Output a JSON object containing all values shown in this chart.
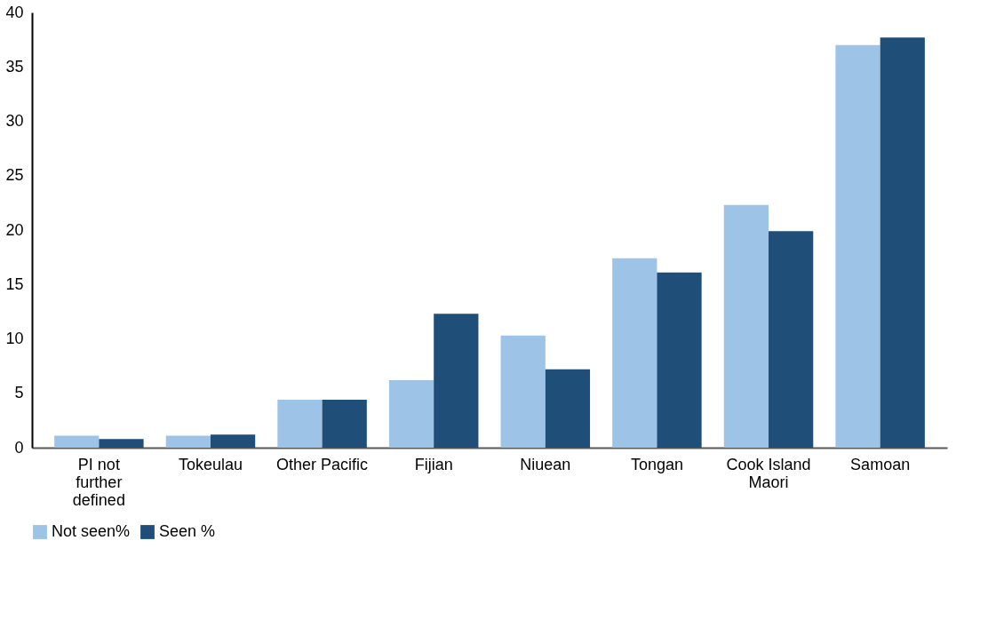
{
  "chart_data": {
    "type": "bar",
    "categories": [
      "PI not further defined",
      "Tokeulau",
      "Other Pacific",
      "Fijian",
      "Niuean",
      "Tongan",
      "Cook Island Maori",
      "Samoan"
    ],
    "series": [
      {
        "name": "Not seen%",
        "color": "#9dc3e6",
        "values": [
          1.1,
          1.1,
          4.4,
          6.2,
          10.3,
          17.4,
          22.3,
          37.0
        ]
      },
      {
        "name": "Seen %",
        "color": "#1f4e79",
        "values": [
          0.8,
          1.2,
          4.4,
          12.3,
          7.2,
          16.1,
          19.9,
          37.7
        ]
      }
    ],
    "ylim": [
      0,
      40
    ],
    "yticks": [
      0,
      5,
      10,
      15,
      20,
      25,
      30,
      35,
      40
    ],
    "grid": false,
    "legend": "bottom"
  }
}
